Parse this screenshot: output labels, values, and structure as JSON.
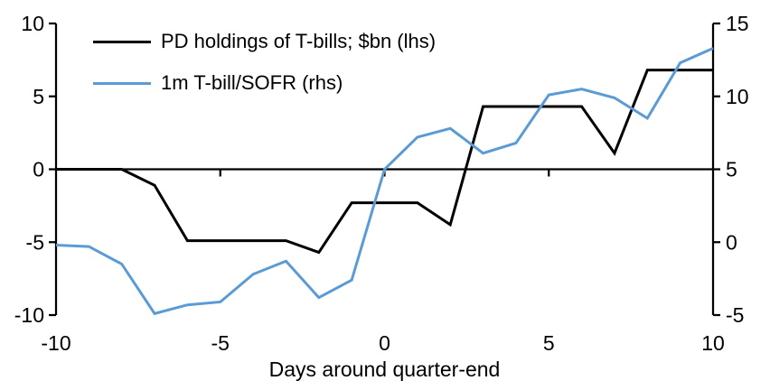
{
  "figure": {
    "background": "#ffffff",
    "text_color": "#000000",
    "axis_color": "#000000"
  },
  "chart_data": {
    "type": "line",
    "title": "",
    "xlabel": "Days around quarter-end",
    "grid": false,
    "legend_position": "top-left-inside",
    "x": [
      -10,
      -9,
      -8,
      -7,
      -6,
      -5,
      -4,
      -3,
      -2,
      -1,
      0,
      1,
      2,
      3,
      4,
      5,
      6,
      7,
      8,
      9,
      10
    ],
    "x_axis": {
      "min": -10,
      "max": 10,
      "ticks": [
        -10,
        -5,
        0,
        5,
        10
      ]
    },
    "left_axis": {
      "min": -10,
      "max": 10,
      "ticks": [
        10,
        5,
        0,
        -5,
        -10
      ]
    },
    "right_axis": {
      "min": -5,
      "max": 15,
      "ticks": [
        15,
        10,
        5,
        0,
        -5
      ]
    },
    "series": [
      {
        "name": "PD holdings of T-bills; $bn (lhs)",
        "axis": "left",
        "color": "#000000",
        "values": [
          0,
          0,
          0,
          -1.1,
          -4.9,
          -4.9,
          -4.9,
          -4.9,
          -5.7,
          -2.3,
          -2.3,
          -2.3,
          -3.8,
          4.3,
          4.3,
          4.3,
          4.3,
          1.1,
          6.8,
          6.8,
          6.8
        ]
      },
      {
        "name": "1m T-bill/SOFR (rhs)",
        "axis": "right",
        "color": "#5B9BD5",
        "values": [
          -0.2,
          -0.3,
          -1.5,
          -4.9,
          -4.3,
          -4.1,
          -2.2,
          -1.3,
          -3.8,
          -2.6,
          5.0,
          7.2,
          7.8,
          6.1,
          6.8,
          10.1,
          10.5,
          9.9,
          8.5,
          12.3,
          13.3
        ]
      }
    ]
  }
}
